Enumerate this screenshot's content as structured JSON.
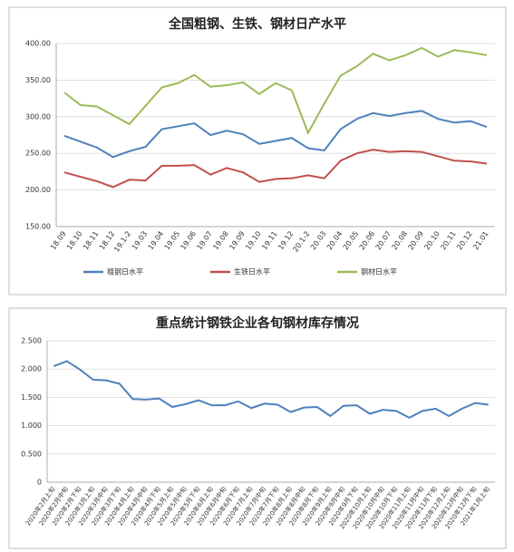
{
  "chart_data": [
    {
      "type": "line",
      "title": "全国粗钢、生铁、钢材日产水平",
      "categories": [
        "18.09",
        "18.10",
        "18.11",
        "18.12",
        "19.1-2",
        "19.03",
        "19.04",
        "19.05",
        "19.06",
        "19.07",
        "19.08",
        "19.09",
        "19.10",
        "19.11",
        "19.12",
        "20.1-2",
        "20.03",
        "20.04",
        "20.05",
        "20.06",
        "20.07",
        "20.08",
        "20.09",
        "20.10",
        "20.11",
        "20.12",
        "21.01"
      ],
      "series": [
        {
          "name": "粗钢日水平",
          "color": "#4f81bd",
          "values": [
            274,
            266,
            258,
            245,
            253,
            259,
            283,
            287,
            291,
            275,
            281,
            276,
            263,
            267,
            271,
            257,
            254,
            283,
            297,
            305,
            301,
            305,
            308,
            297,
            292,
            294,
            286
          ]
        },
        {
          "name": "生铁日水平",
          "color": "#c0504d",
          "values": [
            224,
            218,
            212,
            204,
            214,
            213,
            233,
            233,
            234,
            221,
            230,
            224,
            211,
            215,
            216,
            220,
            216,
            240,
            250,
            255,
            252,
            253,
            252,
            246,
            240,
            239,
            236
          ]
        },
        {
          "name": "钢材日水平",
          "color": "#9bbb59",
          "values": [
            333,
            316,
            314,
            302,
            290,
            315,
            340,
            346,
            357,
            341,
            343,
            347,
            331,
            346,
            336,
            278,
            318,
            356,
            369,
            386,
            377,
            384,
            394,
            382,
            391,
            388,
            384
          ]
        }
      ],
      "ylim": [
        150,
        400
      ],
      "yticks": [
        {
          "value": 150,
          "label": "150.00"
        },
        {
          "value": 200,
          "label": "200.00"
        },
        {
          "value": 250,
          "label": "250.00"
        },
        {
          "value": 300,
          "label": "300.00"
        },
        {
          "value": 350,
          "label": "350.00"
        },
        {
          "value": 400,
          "label": "400.00"
        }
      ],
      "grid": true,
      "legend": "bottom"
    },
    {
      "type": "line",
      "title": "重点统计钢铁企业各旬钢材库存情况",
      "categories": [
        "2020年2月上旬",
        "2020年2月中旬",
        "2020年2月下旬",
        "2020年3月上旬",
        "2020年3月中旬",
        "2020年3月下旬",
        "2020年4月上旬",
        "2020年4月中旬",
        "2020年4月下旬",
        "2020年5月上旬",
        "2020年5月中旬",
        "2020年5月下旬",
        "2020年6月上旬",
        "2020年6月中旬",
        "2020年6月下旬",
        "2020年7月上旬",
        "2020年7月中旬",
        "2020年7月下旬",
        "2020年8月上旬",
        "2020年8月中旬",
        "2020年8月下旬",
        "2020年9月上旬",
        "2020年9月中旬",
        "2020年9月下旬",
        "2020年10月上旬",
        "2020年10月中旬",
        "2020年10月下旬",
        "2020年11月上旬",
        "2020年11月中旬",
        "2020年11月下旬",
        "2020年12月上旬",
        "2020年12月中旬",
        "2020年12月下旬",
        "2021年1月上旬"
      ],
      "values": [
        2.05,
        2.14,
        1.99,
        1.81,
        1.8,
        1.74,
        1.47,
        1.46,
        1.48,
        1.33,
        1.38,
        1.45,
        1.36,
        1.36,
        1.43,
        1.31,
        1.39,
        1.37,
        1.24,
        1.32,
        1.33,
        1.17,
        1.35,
        1.36,
        1.21,
        1.28,
        1.26,
        1.14,
        1.26,
        1.3,
        1.17,
        1.3,
        1.4,
        1.37
      ],
      "color": "#4f81bd",
      "ylim": [
        0,
        2.5
      ],
      "yticks": [
        0,
        {
          "value": 0.5,
          "label": "0.500"
        },
        {
          "value": 1,
          "label": "1.000"
        },
        {
          "value": 1.5,
          "label": "1.500"
        },
        {
          "value": 2,
          "label": "2.000"
        },
        {
          "value": 2.5,
          "label": "2.500"
        }
      ],
      "grid": true
    }
  ]
}
